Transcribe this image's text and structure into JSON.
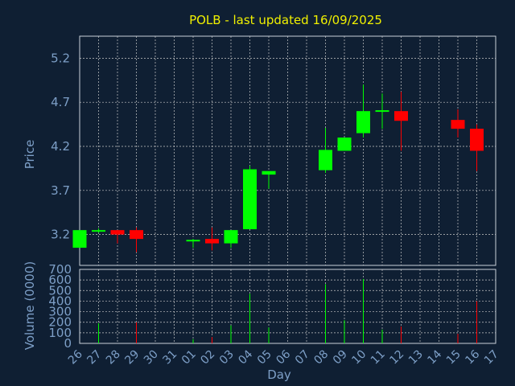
{
  "chart_data": {
    "type": "candlestick",
    "title": "POLB - last updated 16/09/2025",
    "ylabel_price": "Price",
    "ylabel_volume": "Volume (0000)",
    "xlabel": "Day",
    "x_ticks": [
      "26",
      "27",
      "28",
      "29",
      "30",
      "31",
      "01",
      "02",
      "03",
      "04",
      "05",
      "06",
      "07",
      "08",
      "09",
      "10",
      "11",
      "12",
      "13",
      "14",
      "15",
      "16",
      "17"
    ],
    "price_ticks": [
      3.2,
      3.7,
      4.2,
      4.7,
      5.2
    ],
    "price_ylim": [
      2.85,
      5.45
    ],
    "volume_ticks": [
      0,
      100,
      200,
      300,
      400,
      500,
      600,
      700
    ],
    "volume_ylim": [
      0,
      700
    ],
    "grid": true,
    "up_color": "#00ff00",
    "down_color": "#ff0000",
    "candles": [
      {
        "day": "26",
        "open": 3.05,
        "high": 3.25,
        "low": 3.05,
        "close": 3.25,
        "volume": 0
      },
      {
        "day": "27",
        "open": 3.24,
        "high": 3.27,
        "low": 3.22,
        "close": 3.25,
        "volume": 190
      },
      {
        "day": "28",
        "open": 3.25,
        "high": 3.25,
        "low": 3.1,
        "close": 3.2,
        "volume": 0
      },
      {
        "day": "29",
        "open": 3.25,
        "high": 3.28,
        "low": 3.0,
        "close": 3.15,
        "volume": 200
      },
      {
        "day": "01",
        "open": 3.13,
        "high": 3.15,
        "low": 3.05,
        "close": 3.14,
        "volume": 40
      },
      {
        "day": "02",
        "open": 3.15,
        "high": 3.28,
        "low": 3.02,
        "close": 3.1,
        "volume": 60
      },
      {
        "day": "03",
        "open": 3.1,
        "high": 3.25,
        "low": 3.05,
        "close": 3.25,
        "volume": 170
      },
      {
        "day": "04",
        "open": 3.26,
        "high": 3.98,
        "low": 3.26,
        "close": 3.94,
        "volume": 470
      },
      {
        "day": "05",
        "open": 3.88,
        "high": 3.92,
        "low": 3.72,
        "close": 3.92,
        "volume": 150
      },
      {
        "day": "08",
        "open": 3.93,
        "high": 4.41,
        "low": 3.9,
        "close": 4.16,
        "volume": 560
      },
      {
        "day": "09",
        "open": 4.15,
        "high": 4.3,
        "low": 4.15,
        "close": 4.3,
        "volume": 220
      },
      {
        "day": "10",
        "open": 4.35,
        "high": 4.9,
        "low": 4.3,
        "close": 4.6,
        "volume": 610
      },
      {
        "day": "11",
        "open": 4.6,
        "high": 4.8,
        "low": 4.4,
        "close": 4.61,
        "volume": 130
      },
      {
        "day": "12",
        "open": 4.6,
        "high": 4.82,
        "low": 4.15,
        "close": 4.49,
        "volume": 160
      },
      {
        "day": "15",
        "open": 4.5,
        "high": 4.62,
        "low": 4.3,
        "close": 4.4,
        "volume": 90
      },
      {
        "day": "16",
        "open": 4.4,
        "high": 4.45,
        "low": 3.92,
        "close": 4.15,
        "volume": 400
      }
    ]
  }
}
